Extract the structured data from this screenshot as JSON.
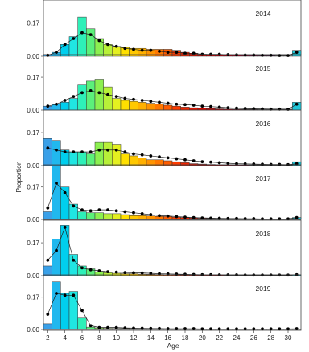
{
  "chart_data": {
    "type": "bar",
    "xlabel": "Age",
    "ylabel": "Proportion",
    "x": [
      2,
      3,
      4,
      5,
      6,
      7,
      8,
      9,
      10,
      11,
      12,
      13,
      14,
      15,
      16,
      17,
      18,
      19,
      20,
      21,
      22,
      23,
      24,
      25,
      26,
      27,
      28,
      29,
      30,
      31
    ],
    "x_ticks": [
      2,
      4,
      6,
      8,
      10,
      12,
      14,
      16,
      18,
      20,
      22,
      24,
      26,
      28,
      30
    ],
    "y_ticks": [
      0.0,
      0.17
    ],
    "y_tick_labels": [
      "0.00",
      "0.17"
    ],
    "ylim": [
      0,
      0.27
    ],
    "series_types": [
      "bar",
      "line+points"
    ],
    "panels": [
      {
        "year": "2014",
        "bars": [
          0.005,
          0.02,
          0.06,
          0.1,
          0.2,
          0.14,
          0.09,
          0.06,
          0.05,
          0.045,
          0.04,
          0.04,
          0.035,
          0.035,
          0.035,
          0.03,
          0.02,
          0.015,
          0.01,
          0.008,
          0.006,
          0.006,
          0.005,
          0.004,
          0.004,
          0.003,
          0.003,
          0.002,
          0.002,
          0.03
        ],
        "points": [
          0.005,
          0.02,
          0.06,
          0.09,
          0.12,
          0.11,
          0.08,
          0.06,
          0.05,
          0.04,
          0.035,
          0.03,
          0.03,
          0.025,
          0.02,
          0.02,
          0.015,
          0.015,
          0.01,
          0.01,
          0.01,
          0.008,
          0.007,
          0.006,
          0.006,
          0.005,
          0.005,
          0.004,
          0.004,
          0.02
        ]
      },
      {
        "year": "2015",
        "bars": [
          0.02,
          0.03,
          0.04,
          0.06,
          0.13,
          0.15,
          0.16,
          0.12,
          0.06,
          0.05,
          0.045,
          0.04,
          0.035,
          0.03,
          0.025,
          0.02,
          0.015,
          0.012,
          0.01,
          0.008,
          0.006,
          0.005,
          0.004,
          0.003,
          0.003,
          0.002,
          0.002,
          0.002,
          0.002,
          0.04
        ],
        "points": [
          0.02,
          0.03,
          0.05,
          0.07,
          0.09,
          0.1,
          0.09,
          0.08,
          0.07,
          0.06,
          0.055,
          0.05,
          0.045,
          0.04,
          0.035,
          0.03,
          0.028,
          0.025,
          0.02,
          0.018,
          0.015,
          0.012,
          0.01,
          0.008,
          0.007,
          0.006,
          0.005,
          0.005,
          0.004,
          0.03
        ]
      },
      {
        "year": "2016",
        "bars": [
          0.14,
          0.13,
          0.08,
          0.07,
          0.07,
          0.06,
          0.12,
          0.12,
          0.11,
          0.06,
          0.05,
          0.04,
          0.03,
          0.03,
          0.025,
          0.02,
          0.015,
          0.01,
          0.008,
          0.006,
          0.005,
          0.004,
          0.003,
          0.003,
          0.002,
          0.002,
          0.002,
          0.002,
          0.002,
          0.02
        ],
        "points": [
          0.09,
          0.08,
          0.07,
          0.07,
          0.07,
          0.07,
          0.08,
          0.08,
          0.08,
          0.07,
          0.06,
          0.055,
          0.05,
          0.045,
          0.04,
          0.035,
          0.03,
          0.025,
          0.02,
          0.018,
          0.015,
          0.012,
          0.01,
          0.009,
          0.008,
          0.007,
          0.006,
          0.006,
          0.005,
          0.01
        ]
      },
      {
        "year": "2017",
        "bars": [
          0.04,
          0.28,
          0.17,
          0.08,
          0.04,
          0.035,
          0.035,
          0.03,
          0.03,
          0.025,
          0.02,
          0.02,
          0.018,
          0.016,
          0.015,
          0.012,
          0.01,
          0.008,
          0.006,
          0.005,
          0.004,
          0.003,
          0.003,
          0.002,
          0.002,
          0.002,
          0.002,
          0.002,
          0.002,
          0.01
        ],
        "points": [
          0.06,
          0.19,
          0.14,
          0.07,
          0.05,
          0.045,
          0.05,
          0.05,
          0.045,
          0.04,
          0.035,
          0.03,
          0.025,
          0.02,
          0.018,
          0.015,
          0.012,
          0.01,
          0.008,
          0.007,
          0.006,
          0.005,
          0.005,
          0.004,
          0.004,
          0.003,
          0.003,
          0.003,
          0.003,
          0.01
        ]
      },
      {
        "year": "2018",
        "bars": [
          0.05,
          0.19,
          0.26,
          0.11,
          0.05,
          0.035,
          0.02,
          0.015,
          0.012,
          0.01,
          0.01,
          0.008,
          0.007,
          0.006,
          0.005,
          0.005,
          0.004,
          0.004,
          0.003,
          0.003,
          0.003,
          0.002,
          0.002,
          0.002,
          0.002,
          0.002,
          0.002,
          0.002,
          0.002,
          0.005
        ],
        "points": [
          0.08,
          0.13,
          0.25,
          0.08,
          0.04,
          0.03,
          0.025,
          0.02,
          0.018,
          0.016,
          0.015,
          0.014,
          0.012,
          0.01,
          0.009,
          0.008,
          0.007,
          0.006,
          0.005,
          0.005,
          0.004,
          0.004,
          0.004,
          0.003,
          0.003,
          0.003,
          0.003,
          0.003,
          0.003,
          0.005
        ]
      },
      {
        "year": "2019",
        "bars": [
          0.03,
          0.25,
          0.19,
          0.2,
          0.06,
          0.012,
          0.008,
          0.006,
          0.005,
          0.005,
          0.004,
          0.004,
          0.003,
          0.003,
          0.003,
          0.003,
          0.002,
          0.002,
          0.002,
          0.002,
          0.002,
          0.002,
          0.002,
          0.002,
          0.002,
          0.002,
          0.002,
          0.002,
          0.002,
          0.002
        ],
        "points": [
          0.08,
          0.19,
          0.18,
          0.18,
          0.1,
          0.02,
          0.01,
          0.01,
          0.01,
          0.008,
          0.007,
          0.006,
          0.005,
          0.005,
          0.004,
          0.004,
          0.004,
          0.004,
          0.003,
          0.003,
          0.003,
          0.003,
          0.003,
          0.003,
          0.003,
          0.003,
          0.003,
          0.003,
          0.003,
          0.004
        ]
      }
    ],
    "bar_colors": [
      "#3aa0e8",
      "#21b8ee",
      "#00cfee",
      "#20e6e2",
      "#2ef0b8",
      "#5cf07a",
      "#8cf050",
      "#b8f038",
      "#e4f020",
      "#ffe000",
      "#ffc800",
      "#ffb000",
      "#ff9400",
      "#ff7800",
      "#ff5c00",
      "#ff3c00",
      "#f02400",
      "#e01400",
      "#d00800",
      "#c00000",
      "#b00008",
      "#a00010",
      "#90001c",
      "#800028",
      "#700034",
      "#600040",
      "#50004c",
      "#400058",
      "#300064",
      "#1fc6d8"
    ]
  }
}
